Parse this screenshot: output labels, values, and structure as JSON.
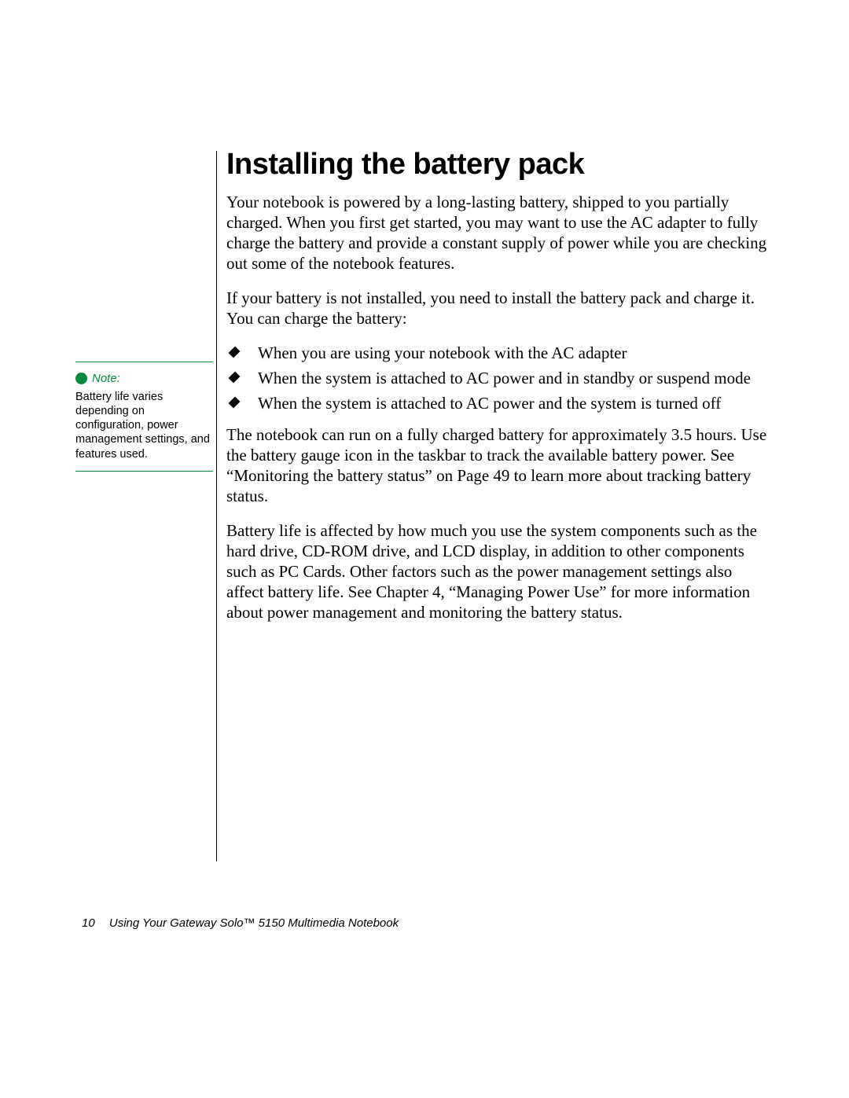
{
  "colors": {
    "accent_green": "#008b3a",
    "text": "#000000",
    "background": "#ffffff"
  },
  "heading": "Installing the battery pack",
  "para1": "Your notebook is powered by a long-lasting battery, shipped to you partially charged. When you first get started, you may want to use the AC adapter to fully charge the battery and provide a constant supply of power while you are checking out some of the notebook features.",
  "para2": "If your battery is not installed, you need to install the battery pack and charge it. You can charge the battery:",
  "bullets": [
    "When you are using your notebook with the AC adapter",
    "When the system is attached to AC power and in standby or suspend mode",
    "When the system is attached to AC power and the system is turned off"
  ],
  "para3": "The notebook can run on a fully charged battery for approximately 3.5 hours. Use the battery gauge icon in the taskbar to track the available battery power. See “Monitoring the battery status” on Page 49 to learn more about tracking battery status.",
  "para4": "Battery life is affected by how much you use the system components such as the hard drive, CD-ROM drive, and LCD display, in addition to other components such as PC Cards. Other factors such as the power management settings also affect battery life. See Chapter 4, “Managing Power Use” for more information about power management and monitoring the battery status.",
  "sidebar": {
    "label": "Note:",
    "body": "Battery life varies depending on configuration, power management settings, and features used."
  },
  "footer": {
    "page_number": "10",
    "title": "Using Your Gateway Solo™ 5150 Multimedia Notebook"
  }
}
